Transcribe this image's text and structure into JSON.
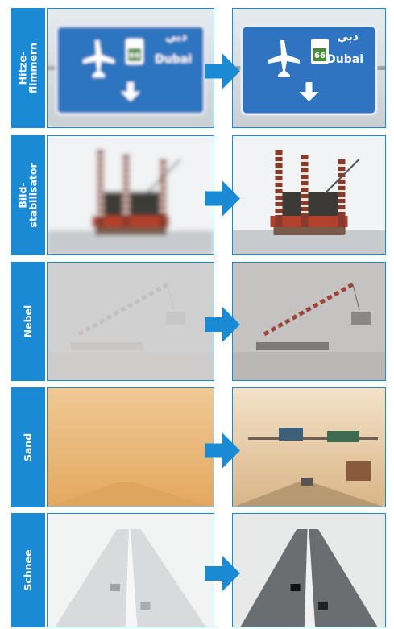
{
  "rows": [
    {
      "label": [
        "Hitze-",
        "flimmern"
      ],
      "sign": {
        "arabic": "دبي",
        "route": "66",
        "city": "Dubai"
      }
    },
    {
      "label": [
        "Bild-",
        "stabilisator"
      ]
    },
    {
      "label": [
        "Nebel"
      ]
    },
    {
      "label": [
        "Sand"
      ]
    },
    {
      "label": [
        "Schnee"
      ]
    }
  ]
}
